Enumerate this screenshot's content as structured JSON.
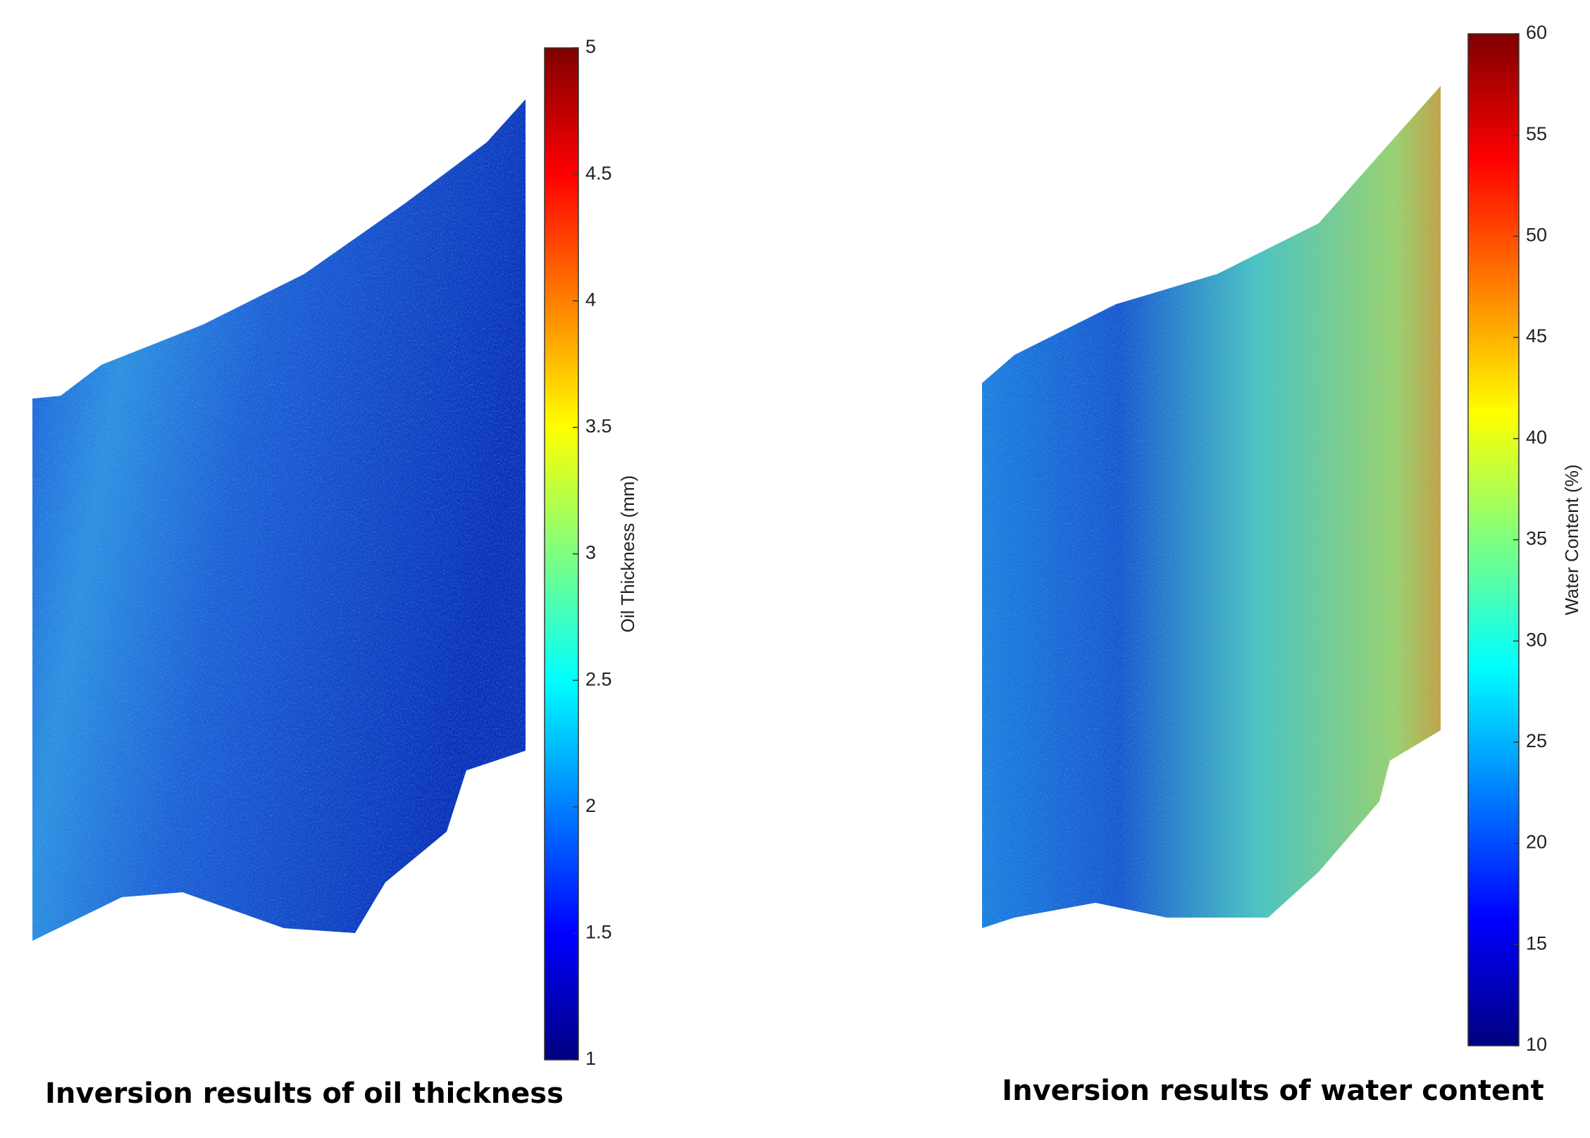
{
  "chart_data": [
    {
      "type": "heatmap",
      "title": "Inversion results of oil thickness",
      "colorbar_label": "Oil Thickness (mm)",
      "colormap": "jet",
      "clim": [
        1,
        5
      ],
      "cticks": [
        1,
        1.5,
        2,
        2.5,
        3,
        3.5,
        4,
        4.5,
        5
      ]
    },
    {
      "type": "heatmap",
      "title": "Inversion results of water content",
      "colorbar_label": "Water Content (%)",
      "colormap": "jet",
      "clim": [
        10,
        60
      ],
      "cticks": [
        10,
        15,
        20,
        25,
        30,
        35,
        40,
        45,
        50,
        55,
        60
      ]
    }
  ]
}
